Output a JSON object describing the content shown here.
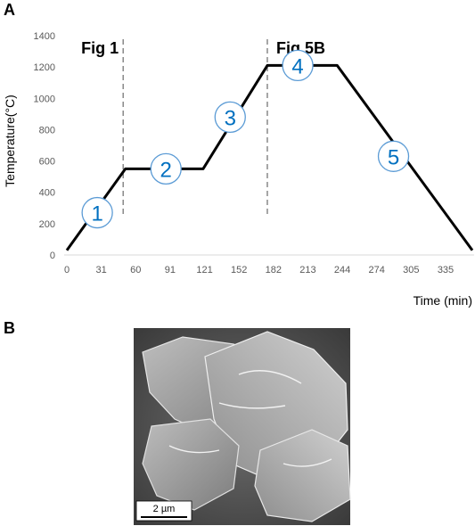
{
  "panels": {
    "a": "A",
    "b": "B"
  },
  "chart_data": {
    "type": "line",
    "xlabel": "Time (min)",
    "ylabel": "Temperature(°C)",
    "x_ticks": [
      "0",
      "31",
      "60",
      "91",
      "121",
      "152",
      "182",
      "213",
      "244",
      "274",
      "305",
      "335"
    ],
    "y_ticks": [
      0,
      200,
      400,
      600,
      800,
      1000,
      1200,
      1400
    ],
    "xlim": [
      0,
      360
    ],
    "ylim": [
      0,
      1400
    ],
    "grid": false,
    "series": [
      {
        "x": [
          0,
          52,
          80,
          121,
          178,
          240,
          360
        ],
        "y": [
          30,
          550,
          550,
          550,
          1210,
          1210,
          30
        ],
        "color": "#000000"
      }
    ],
    "reference_lines": [
      {
        "x": 50,
        "label": "Fig 1"
      },
      {
        "x": 178,
        "label": "Fig 5B"
      }
    ],
    "stage_markers": [
      {
        "label": "1",
        "x": 27,
        "y": 270
      },
      {
        "label": "2",
        "x": 88,
        "y": 550
      },
      {
        "label": "3",
        "x": 145,
        "y": 880
      },
      {
        "label": "4",
        "x": 205,
        "y": 1210
      },
      {
        "label": "5",
        "x": 290,
        "y": 630
      }
    ]
  },
  "micrograph": {
    "scale_bar_label": "2 µm",
    "tone": "#8a8a8a"
  }
}
